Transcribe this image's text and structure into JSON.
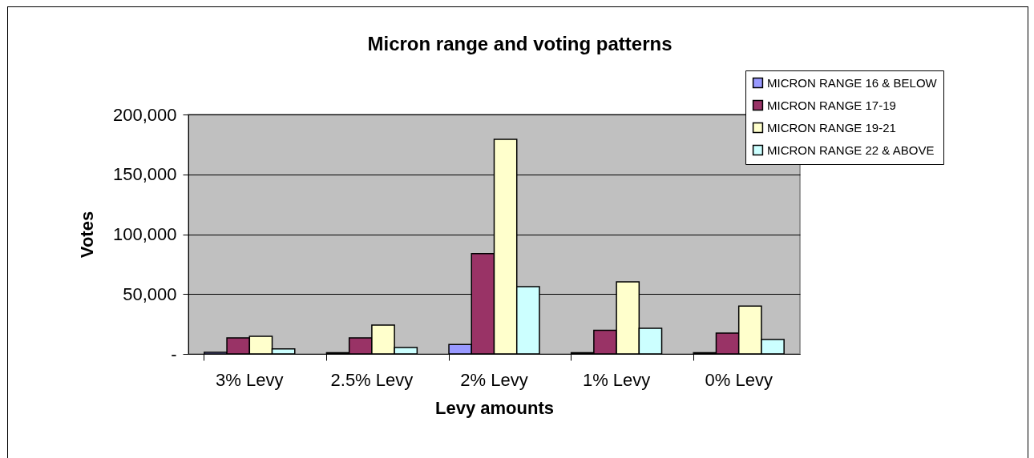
{
  "chart_data": {
    "type": "bar",
    "title": "Micron range and voting patterns",
    "xlabel": "Levy amounts",
    "ylabel": "Votes",
    "categories": [
      "3% Levy",
      "2.5% Levy",
      "2% Levy",
      "1% Levy",
      "0% Levy"
    ],
    "series": [
      {
        "name": "MICRON RANGE 16 & BELOW",
        "color": "#9999ff",
        "values": [
          1300,
          1000,
          7800,
          1000,
          1000
        ]
      },
      {
        "name": "MICRON RANGE 17-19",
        "color": "#993366",
        "values": [
          13400,
          13400,
          83800,
          19800,
          17400
        ]
      },
      {
        "name": "MICRON RANGE 19-21",
        "color": "#ffffcc",
        "values": [
          14700,
          24100,
          179300,
          60200,
          39900
        ]
      },
      {
        "name": "MICRON RANGE 22 & ABOVE",
        "color": "#ccffff",
        "values": [
          4200,
          5400,
          56200,
          21400,
          12000
        ]
      }
    ],
    "ylim": [
      0,
      200000
    ],
    "yticks": [
      {
        "value": 0,
        "label": "-"
      },
      {
        "value": 50000,
        "label": "50,000"
      },
      {
        "value": 100000,
        "label": "100,000"
      },
      {
        "value": 150000,
        "label": "150,000"
      },
      {
        "value": 200000,
        "label": "200,000"
      }
    ],
    "grid": "y",
    "legend": "top right"
  }
}
